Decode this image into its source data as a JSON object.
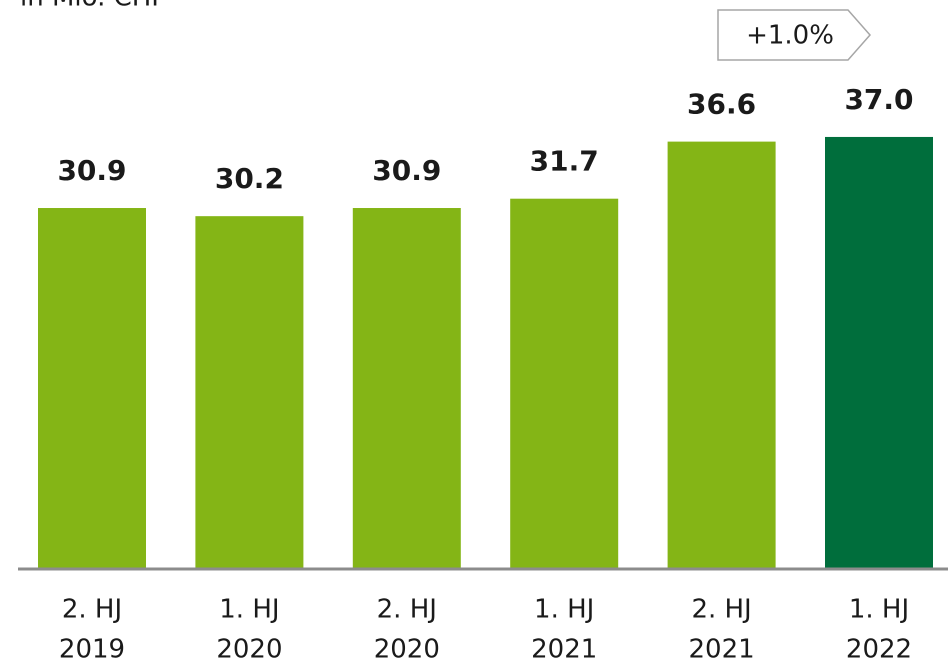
{
  "chart_data": {
    "type": "bar",
    "subtitle": "in Mio. CHF",
    "categories": [
      [
        "2. HJ",
        "2019"
      ],
      [
        "1. HJ",
        "2020"
      ],
      [
        "2. HJ",
        "2020"
      ],
      [
        "1. HJ",
        "2021"
      ],
      [
        "2. HJ",
        "2021"
      ],
      [
        "1. HJ",
        "2022"
      ]
    ],
    "values": [
      30.9,
      30.2,
      30.9,
      31.7,
      36.6,
      37.0
    ],
    "value_labels": [
      "30.9",
      "30.2",
      "30.9",
      "31.7",
      "36.6",
      "37.0"
    ],
    "colors": [
      "#84b516",
      "#84b516",
      "#84b516",
      "#84b516",
      "#84b516",
      "#006e3c"
    ],
    "annotation": "+1.0%"
  }
}
